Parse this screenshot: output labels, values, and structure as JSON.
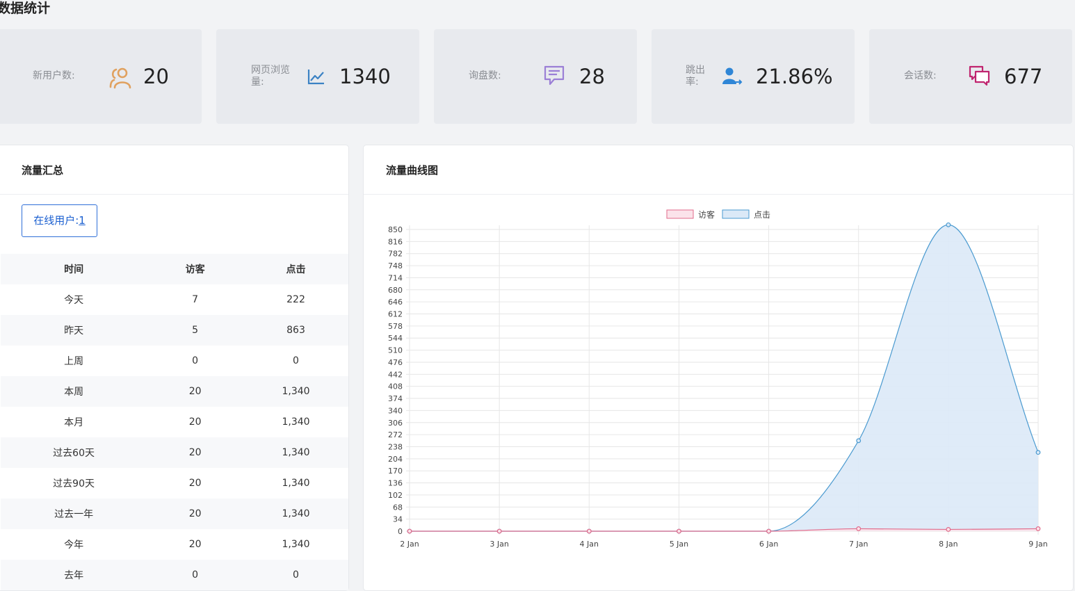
{
  "page_title": "数据统计",
  "stats": [
    {
      "label": "新用户数:",
      "value": "20",
      "icon": "users-icon",
      "color": "#e0a15f"
    },
    {
      "label": "网页浏览量:",
      "value": "1340",
      "icon": "line-chart-icon",
      "color": "#3b82c4"
    },
    {
      "label": "询盘数:",
      "value": "28",
      "icon": "chat-bubble-icon",
      "color": "#9b7fd6"
    },
    {
      "label": "跳出率:",
      "value": "21.86%",
      "icon": "user-exit-icon",
      "color": "#2f86d6"
    },
    {
      "label": "会话数:",
      "value": "677",
      "icon": "conversation-icon",
      "color": "#c0256f"
    }
  ],
  "summary": {
    "title": "流量汇总",
    "online_label": "在线用户:",
    "online_count": "1",
    "headers": [
      "时间",
      "访客",
      "点击"
    ],
    "rows": [
      [
        "今天",
        "7",
        "222"
      ],
      [
        "昨天",
        "5",
        "863"
      ],
      [
        "上周",
        "0",
        "0"
      ],
      [
        "本周",
        "20",
        "1,340"
      ],
      [
        "本月",
        "20",
        "1,340"
      ],
      [
        "过去60天",
        "20",
        "1,340"
      ],
      [
        "过去90天",
        "20",
        "1,340"
      ],
      [
        "过去一年",
        "20",
        "1,340"
      ],
      [
        "今年",
        "20",
        "1,340"
      ],
      [
        "去年",
        "0",
        "0"
      ]
    ]
  },
  "chart_panel": {
    "title": "流量曲线图"
  },
  "chart_data": {
    "type": "area",
    "categories": [
      "2 Jan",
      "3 Jan",
      "4 Jan",
      "5 Jan",
      "6 Jan",
      "7 Jan",
      "8 Jan",
      "9 Jan"
    ],
    "series": [
      {
        "name": "访客",
        "values": [
          0,
          0,
          0,
          0,
          0,
          7,
          5,
          7
        ],
        "color": "#e06b8b",
        "fill": "#fbe3ea"
      },
      {
        "name": "点击",
        "values": [
          0,
          0,
          0,
          0,
          0,
          255,
          863,
          222
        ],
        "color": "#4a9ad0",
        "fill": "#dbe9f7"
      }
    ],
    "ylim": [
      0,
      850
    ],
    "yticks": [
      0,
      34,
      68,
      102,
      136,
      170,
      204,
      238,
      272,
      306,
      340,
      374,
      408,
      442,
      476,
      510,
      544,
      578,
      612,
      646,
      680,
      714,
      748,
      782,
      816,
      850
    ],
    "legend": "top-center",
    "grid": true
  }
}
